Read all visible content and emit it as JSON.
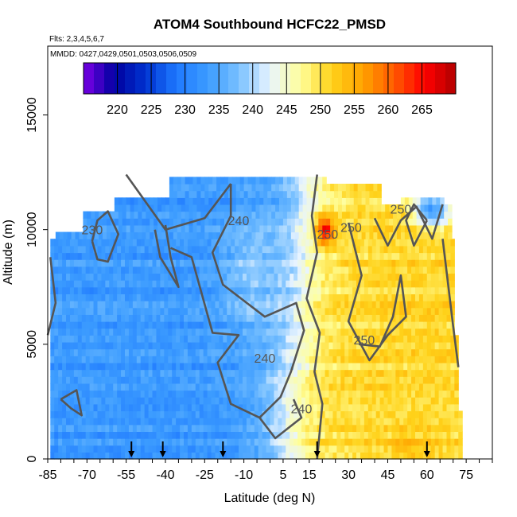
{
  "chart_data": {
    "type": "heatmap",
    "title": "ATOM4 Southbound HCFC22_PMSD",
    "subtitle_flights": "Flts: 2,3,4,5,6,7",
    "subtitle_dates": "MMDD: 0427,0429,0501,0503,0506,0509",
    "xlabel": "Latitude (deg N)",
    "ylabel": "Altitude (m)",
    "xlim": [
      -85,
      85
    ],
    "ylim": [
      0,
      18000
    ],
    "x_tick_labels": [
      "-85",
      "-70",
      "-55",
      "-40",
      "-25",
      "-10",
      "5",
      "15",
      "30",
      "45",
      "60",
      "75"
    ],
    "y_tick_labels": [
      "0",
      "5000",
      "10000",
      "15000"
    ],
    "colorbar": {
      "ticks": [
        "220",
        "225",
        "230",
        "235",
        "240",
        "245",
        "250",
        "255",
        "260",
        "265"
      ],
      "range": [
        215,
        270
      ],
      "colors": [
        "#7a00e6",
        "#0000a0",
        "#0033d0",
        "#1e78ff",
        "#3c9cff",
        "#78c0ff",
        "#e8f4ff",
        "#ffff9a",
        "#ffd21a",
        "#ffa200",
        "#ff5a00",
        "#ff0000",
        "#b00000"
      ]
    },
    "contour_labels": [
      {
        "text": "240",
        "lat": -12,
        "alt": 10200
      },
      {
        "text": "230",
        "lat": -68,
        "alt": 9800
      },
      {
        "text": "250",
        "lat": 22,
        "alt": 9600
      },
      {
        "text": "250",
        "lat": 31,
        "alt": 9900
      },
      {
        "text": "250",
        "lat": 50,
        "alt": 10700
      },
      {
        "text": "250",
        "lat": 36,
        "alt": 5000
      },
      {
        "text": "240",
        "lat": -2,
        "alt": 4200
      },
      {
        "text": "240",
        "lat": 12,
        "alt": 2000
      }
    ],
    "flight_markers_lat": [
      -53,
      -41,
      -18,
      18,
      60
    ],
    "grid": false,
    "legend_placement": "top (inside plot)"
  }
}
